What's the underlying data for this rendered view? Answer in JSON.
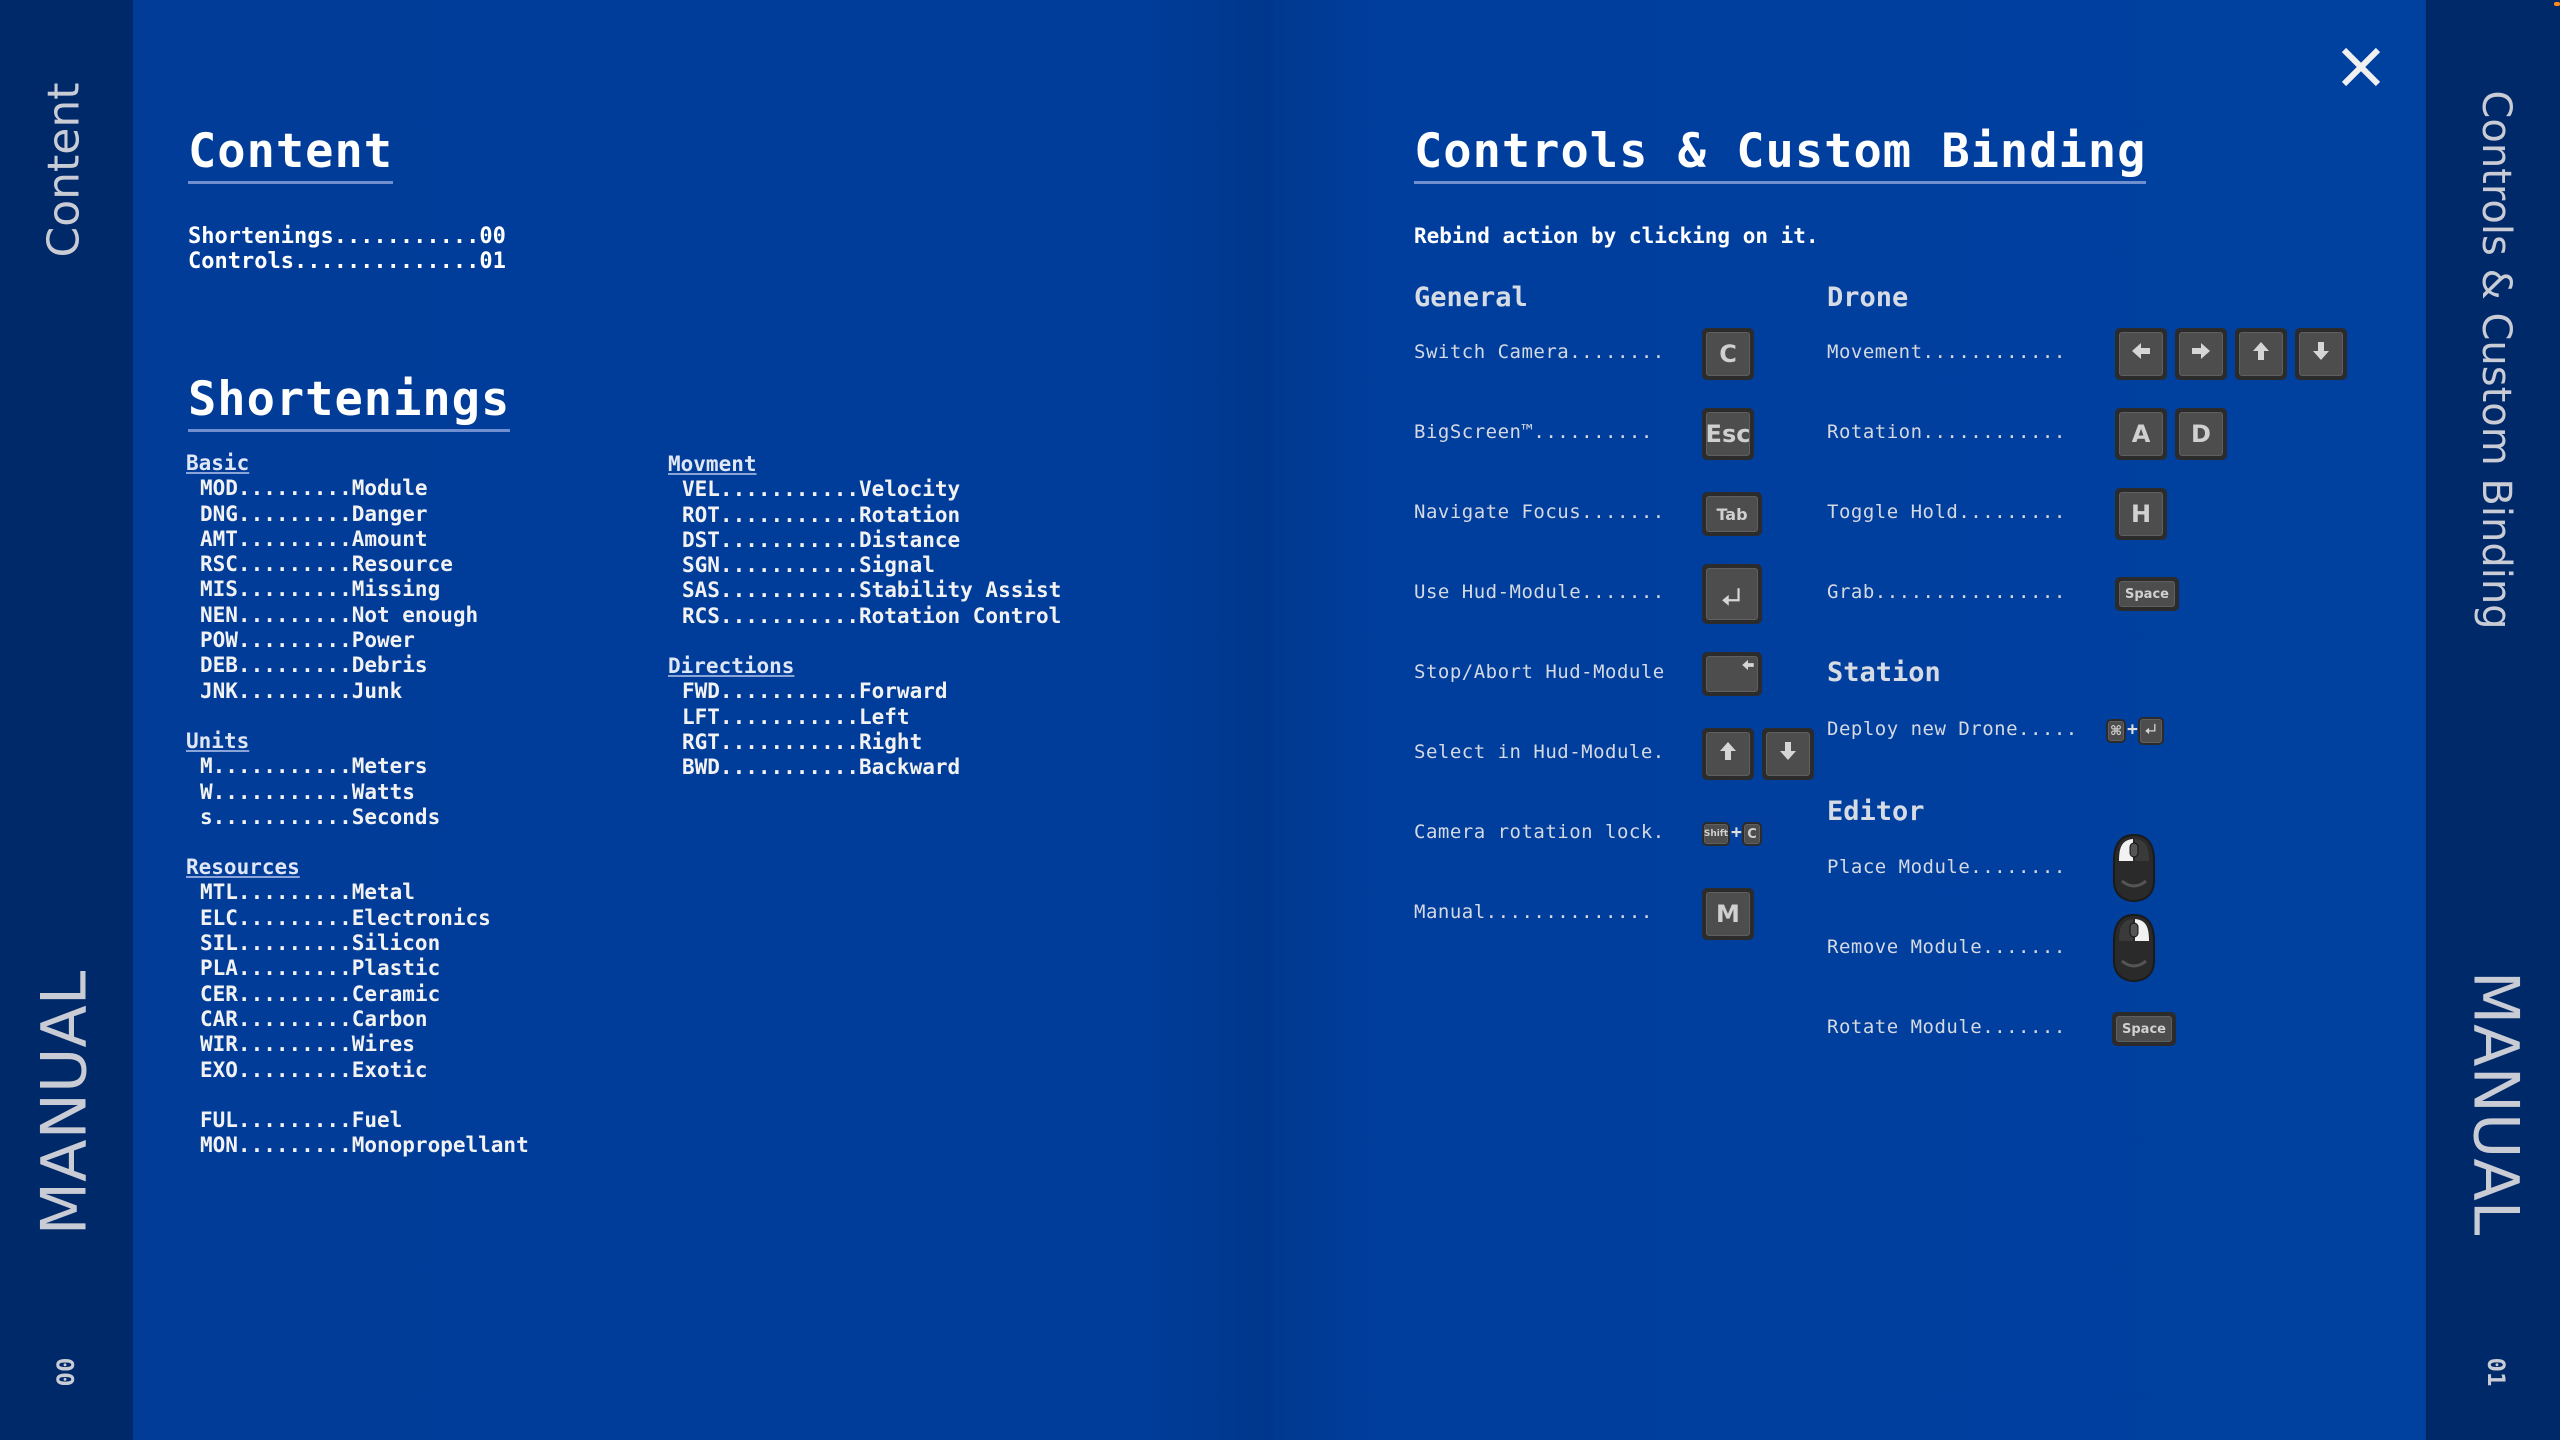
{
  "sidebar_left": {
    "title": "Content",
    "book": "MANUAL",
    "page": "00"
  },
  "sidebar_right": {
    "title": "Controls & Custom Binding",
    "book": "MANUAL",
    "page": "01"
  },
  "content": {
    "title": "Content",
    "toc": [
      {
        "text": "Shortenings...........00"
      },
      {
        "text": "Controls..............01"
      }
    ]
  },
  "shortenings": {
    "title": "Shortenings",
    "groups_left": [
      {
        "name": "Basic",
        "lines": [
          "MOD.........Module",
          "DNG.........Danger",
          "AMT.........Amount",
          "RSC.........Resource",
          "MIS.........Missing",
          "NEN.........Not enough",
          "POW.........Power",
          "DEB.........Debris",
          "JNK.........Junk"
        ]
      },
      {
        "name": "Units",
        "lines": [
          "M...........Meters",
          "W...........Watts",
          "s...........Seconds"
        ]
      },
      {
        "name": "Resources",
        "lines": [
          "MTL.........Metal",
          "ELC.........Electronics",
          "SIL.........Silicon",
          "PLA.........Plastic",
          "CER.........Ceramic",
          "CAR.........Carbon",
          "WIR.........Wires",
          "EXO.........Exotic",
          " ",
          "FUL.........Fuel",
          "MON.........Monopropellant"
        ]
      }
    ],
    "groups_right": [
      {
        "name": "Movment",
        "lines": [
          "VEL...........Velocity",
          "ROT...........Rotation",
          "DST...........Distance",
          "SGN...........Signal",
          "SAS...........Stability Assist",
          "RCS...........Rotation Control"
        ]
      },
      {
        "name": "Directions",
        "lines": [
          "FWD...........Forward",
          "LFT...........Left",
          "RGT...........Right",
          "BWD...........Backward"
        ]
      }
    ]
  },
  "controls": {
    "title": "Controls & Custom Binding",
    "subtitle": "Rebind action by clicking on it.",
    "general": {
      "title": "General",
      "rows": [
        {
          "label": "Switch Camera........",
          "keys": [
            {
              "type": "key",
              "text": "C"
            }
          ]
        },
        {
          "label": "BigScreen™..........",
          "keys": [
            {
              "type": "key",
              "text": "Esc"
            }
          ]
        },
        {
          "label": "Navigate Focus.......",
          "keys": [
            {
              "type": "wide",
              "text": "Tab"
            }
          ]
        },
        {
          "label": "Use Hud-Module.......",
          "keys": [
            {
              "type": "enter",
              "icon": "enter-icon"
            }
          ]
        },
        {
          "label": "Stop/Abort Hud-Module",
          "keys": [
            {
              "type": "wide",
              "icon": "backspace-icon"
            }
          ]
        },
        {
          "label": "Select in Hud-Module.",
          "keys": [
            {
              "type": "key",
              "icon": "arrow-up-icon"
            },
            {
              "type": "key",
              "icon": "arrow-down-icon"
            }
          ]
        },
        {
          "label": "Camera rotation lock.",
          "keys": [
            {
              "type": "small",
              "text": "Shift"
            },
            {
              "type": "plus",
              "text": "+"
            },
            {
              "type": "small",
              "text": "C"
            }
          ]
        },
        {
          "label": "Manual..............",
          "keys": [
            {
              "type": "key",
              "text": "M"
            }
          ]
        }
      ]
    },
    "drone": {
      "title": "Drone",
      "rows": [
        {
          "label": "Movement............",
          "keys": [
            {
              "type": "key",
              "icon": "arrow-left-icon"
            },
            {
              "type": "key",
              "icon": "arrow-right-icon"
            },
            {
              "type": "key",
              "icon": "arrow-up-icon"
            },
            {
              "type": "key",
              "icon": "arrow-down-icon"
            }
          ]
        },
        {
          "label": "Rotation............",
          "keys": [
            {
              "type": "key",
              "text": "A"
            },
            {
              "type": "key",
              "text": "D"
            }
          ]
        },
        {
          "label": "Toggle Hold.........",
          "keys": [
            {
              "type": "key",
              "text": "H"
            }
          ]
        },
        {
          "label": "Grab................",
          "keys": [
            {
              "type": "space",
              "text": "Space"
            }
          ]
        }
      ]
    },
    "station": {
      "title": "Station",
      "rows": [
        {
          "label": "Deploy new Drone.....",
          "keys": [
            {
              "type": "small",
              "text": "⌘"
            },
            {
              "type": "plus",
              "text": "+"
            },
            {
              "type": "smallenter",
              "icon": "enter-icon"
            }
          ]
        }
      ]
    },
    "editor": {
      "title": "Editor",
      "rows": [
        {
          "label": "Place Module........",
          "keys": [
            {
              "type": "mouse",
              "icon": "mouse-left-click-icon",
              "button": "left"
            }
          ]
        },
        {
          "label": "Remove Module.......",
          "keys": [
            {
              "type": "mouse",
              "icon": "mouse-right-click-icon",
              "button": "right"
            }
          ]
        },
        {
          "label": "Rotate Module.......",
          "keys": [
            {
              "type": "space",
              "text": "Space"
            }
          ]
        }
      ]
    }
  },
  "close_icon": "close-icon",
  "colors": {
    "background": "#003d99",
    "sidebar": "#00296a",
    "key": "#4d4d4d",
    "notification_dot": "#ff8a1a"
  }
}
